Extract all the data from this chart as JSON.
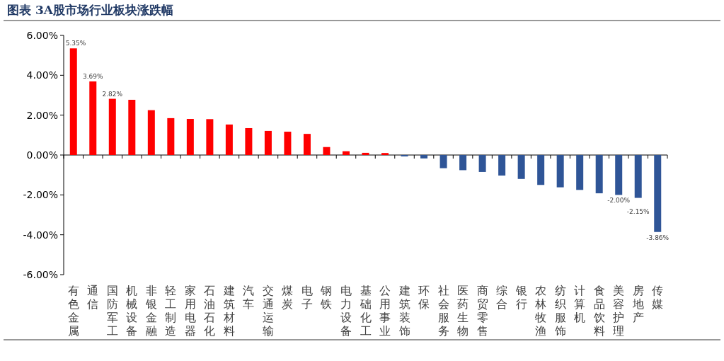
{
  "chart_data": {
    "type": "bar",
    "title": "图表 3A股市场行业板块涨跌幅",
    "categories": [
      "有色金属",
      "通信",
      "国防军工",
      "机械设备",
      "非银金融",
      "轻工制造",
      "家用电器",
      "石油石化",
      "建筑材料",
      "汽车",
      "交通运输",
      "煤炭",
      "电子",
      "钢铁",
      "电力设备",
      "基础化工",
      "公用事业",
      "建筑装饰",
      "环保",
      "社会服务",
      "医药生物",
      "商贸零售",
      "综合",
      "银行",
      "农林牧渔",
      "纺织服饰",
      "计算机",
      "食品饮料",
      "美容护理",
      "房地产",
      "传媒"
    ],
    "values": [
      5.35,
      3.69,
      2.82,
      2.77,
      2.25,
      1.85,
      1.81,
      1.8,
      1.53,
      1.35,
      1.21,
      1.17,
      1.06,
      0.4,
      0.19,
      0.11,
      0.1,
      -0.07,
      -0.17,
      -0.66,
      -0.76,
      -0.85,
      -1.03,
      -1.2,
      -1.5,
      -1.62,
      -1.75,
      -1.92,
      -2.0,
      -2.15,
      -3.86
    ],
    "colors": [
      "#ff0000",
      "#ff0000",
      "#ff0000",
      "#ff0000",
      "#ff0000",
      "#ff0000",
      "#ff0000",
      "#ff0000",
      "#ff0000",
      "#ff0000",
      "#ff0000",
      "#ff0000",
      "#ff0000",
      "#ff0000",
      "#ff0000",
      "#ff0000",
      "#ff0000",
      "#2f5597",
      "#2f5597",
      "#2f5597",
      "#2f5597",
      "#2f5597",
      "#2f5597",
      "#2f5597",
      "#2f5597",
      "#2f5597",
      "#2f5597",
      "#2f5597",
      "#2f5597",
      "#2f5597",
      "#2f5597"
    ],
    "value_labels": [
      "5.35%",
      "3.69%",
      "2.82%",
      null,
      null,
      null,
      null,
      null,
      null,
      null,
      null,
      null,
      null,
      null,
      null,
      null,
      null,
      null,
      null,
      null,
      null,
      null,
      null,
      null,
      null,
      null,
      null,
      null,
      "-2.00%",
      "-2.15%",
      "-3.86%"
    ],
    "ylim": [
      -6,
      6
    ],
    "yticks": [
      {
        "value": -6,
        "label": "-6.00%"
      },
      {
        "value": -4,
        "label": "-4.00%"
      },
      {
        "value": -2,
        "label": "-2.00%"
      },
      {
        "value": 0,
        "label": "0.00%"
      },
      {
        "value": 2,
        "label": "2.00%"
      },
      {
        "value": 4,
        "label": "4.00%"
      },
      {
        "value": 6,
        "label": "6.00%"
      }
    ]
  }
}
